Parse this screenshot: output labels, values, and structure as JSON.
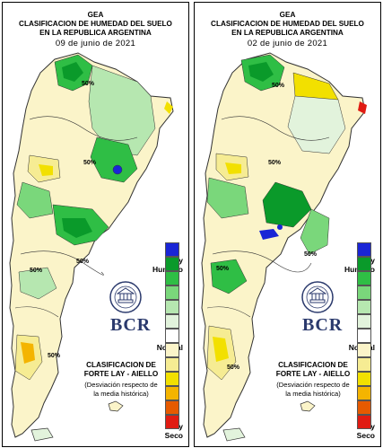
{
  "header": {
    "line1": "GEA",
    "line2": "CLASIFICACION DE HUMEDAD DEL SUELO",
    "line3": "EN LA REPUBLICA ARGENTINA"
  },
  "panels": [
    {
      "date": "09 de junio de 2021"
    },
    {
      "date": "02 de junio de 2021"
    }
  ],
  "legend": {
    "top_label_1": "Muy",
    "top_label_2": "Humedo",
    "middle_label": "Normal",
    "bottom_label_1": "Muy",
    "bottom_label_2": "Seco",
    "colors": [
      "#1a25d6",
      "#0a9a2a",
      "#2fbe45",
      "#7ad77b",
      "#b6e7b0",
      "#e2f3dc",
      "#ffffff",
      "#fbf4c9",
      "#f6ec93",
      "#f2e000",
      "#f4b400",
      "#e65a00",
      "#e01b12"
    ]
  },
  "branding": {
    "logo_text": "BCR",
    "seal_icon": "bcr-seal-icon"
  },
  "caption": {
    "line1": "CLASIFICACION DE",
    "line2": "FORTE LAY - AIELLO",
    "line3": "(Desviación respecto de",
    "line4": "la media histórica)"
  },
  "map_labels": {
    "contour_label": "50%"
  }
}
